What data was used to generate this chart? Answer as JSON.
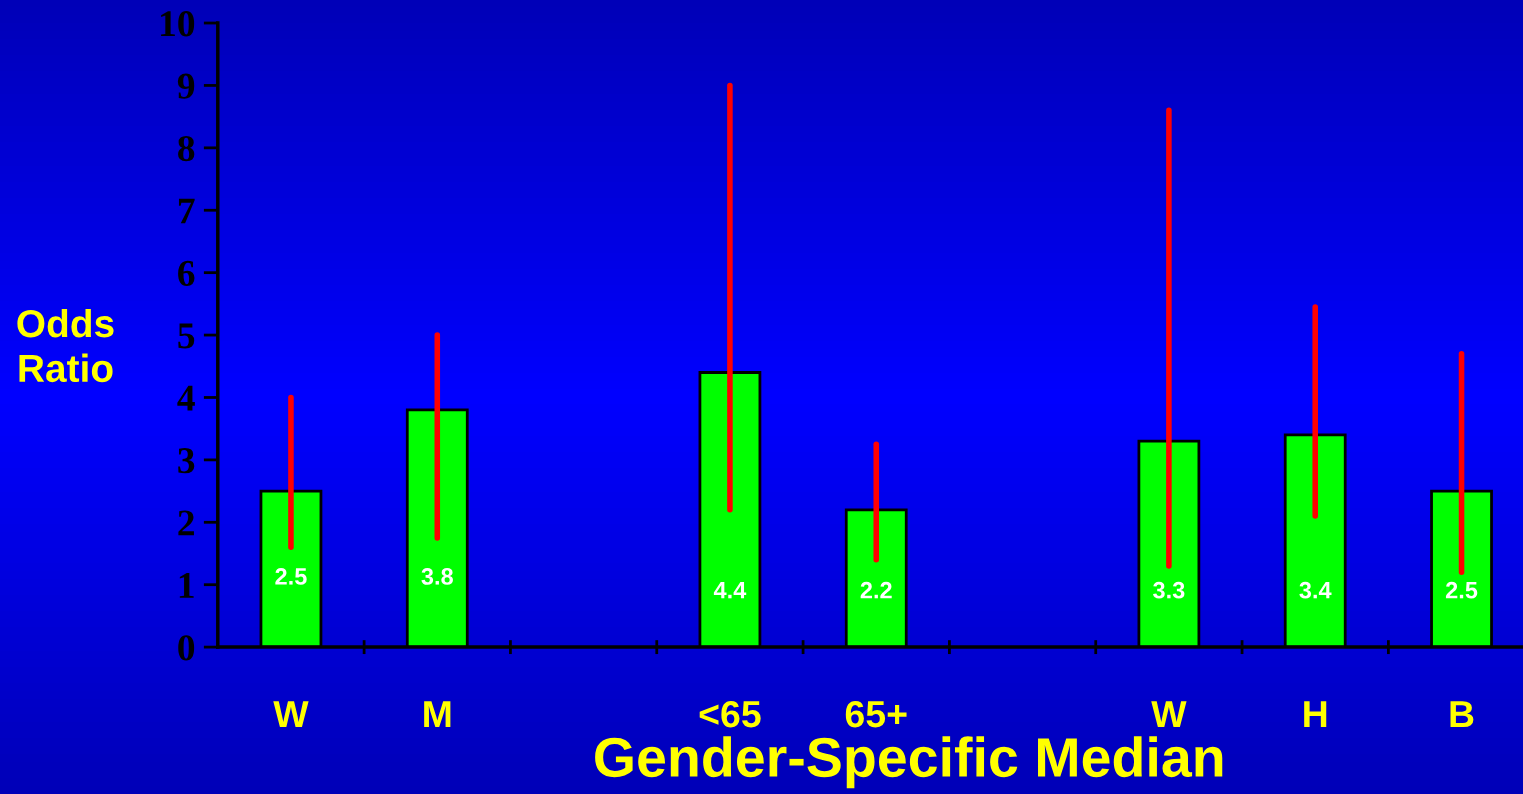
{
  "chart_data": {
    "type": "bar",
    "xlabel": "Gender-Specific Median",
    "ylabel": "Odds\nRatio",
    "categories": [
      "W",
      "M",
      null,
      "<65",
      "65+",
      null,
      "W",
      "H",
      "B"
    ],
    "values": [
      2.5,
      3.8,
      null,
      4.4,
      2.2,
      null,
      3.3,
      3.4,
      2.5
    ],
    "errors": [
      [
        1.6,
        4.0
      ],
      [
        1.75,
        5.0
      ],
      null,
      [
        2.2,
        9.0
      ],
      [
        1.4,
        3.25
      ],
      null,
      [
        1.3,
        8.6
      ],
      [
        2.1,
        5.45
      ],
      [
        1.2,
        4.7
      ]
    ],
    "color": "#00ff00",
    "data_labels": true,
    "ylim": [
      0,
      10
    ],
    "yticks": [
      0,
      1,
      2,
      3,
      4,
      5,
      6,
      7,
      8,
      9,
      10
    ],
    "grid": false,
    "legend": false
  }
}
